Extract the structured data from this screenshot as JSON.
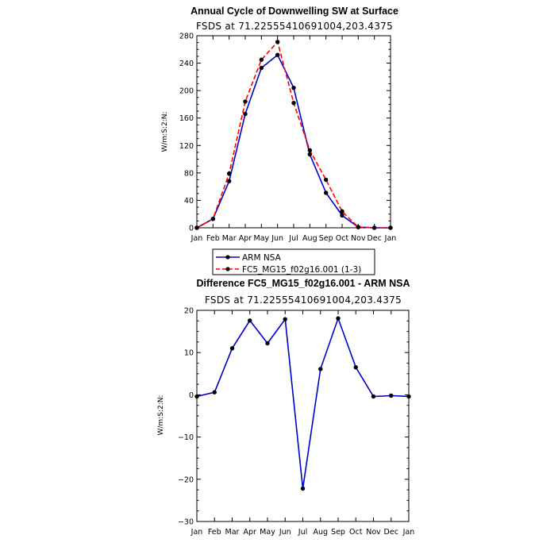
{
  "chart_data": [
    {
      "type": "line",
      "title": "Annual Cycle of Downwelling SW at Surface",
      "subtitle": "FSDS at 71.22555410691004,203.4375",
      "ylabel": "W/m:S:2:N:",
      "ylim": [
        0,
        280
      ],
      "yticks": [
        "0",
        "40",
        "80",
        "120",
        "160",
        "200",
        "240",
        "280"
      ],
      "categories": [
        "Jan",
        "Feb",
        "Mar",
        "Apr",
        "May",
        "Jun",
        "Jul",
        "Aug",
        "Sep",
        "Oct",
        "Nov",
        "Dec",
        "Jan"
      ],
      "series": [
        {
          "name": "ARM NSA",
          "color": "#0000cc",
          "dash": "solid",
          "values": [
            0,
            13,
            68,
            166,
            233,
            252,
            204,
            107,
            51,
            18,
            1,
            0,
            0
          ]
        },
        {
          "name": "FC5_MG15_f02g16.001 (1-3)",
          "color": "#ff0000",
          "dash": "dashed",
          "values": [
            0,
            13,
            79,
            184,
            245,
            271,
            182,
            113,
            70,
            24,
            1,
            0,
            0
          ]
        }
      ],
      "legend": "below"
    },
    {
      "type": "line",
      "title": "Difference FC5_MG15_f02g16.001 - ARM NSA",
      "subtitle": "FSDS at 71.22555410691004,203.4375",
      "ylabel": "W/m:S:2:N:",
      "ylim": [
        -30,
        20
      ],
      "yticks": [
        "−30",
        "−20",
        "−10",
        "0",
        "10",
        "20"
      ],
      "categories": [
        "Jan",
        "Feb",
        "Mar",
        "Apr",
        "May",
        "Jun",
        "Jul",
        "Aug",
        "Sep",
        "Oct",
        "Nov",
        "Dec",
        "Jan"
      ],
      "series": [
        {
          "color": "#0000cc",
          "dash": "solid",
          "values": [
            -0.4,
            0.6,
            11,
            17.6,
            12.2,
            17.9,
            -22.2,
            6.1,
            18.1,
            6.5,
            -0.4,
            -0.2,
            -0.4
          ]
        }
      ]
    }
  ]
}
